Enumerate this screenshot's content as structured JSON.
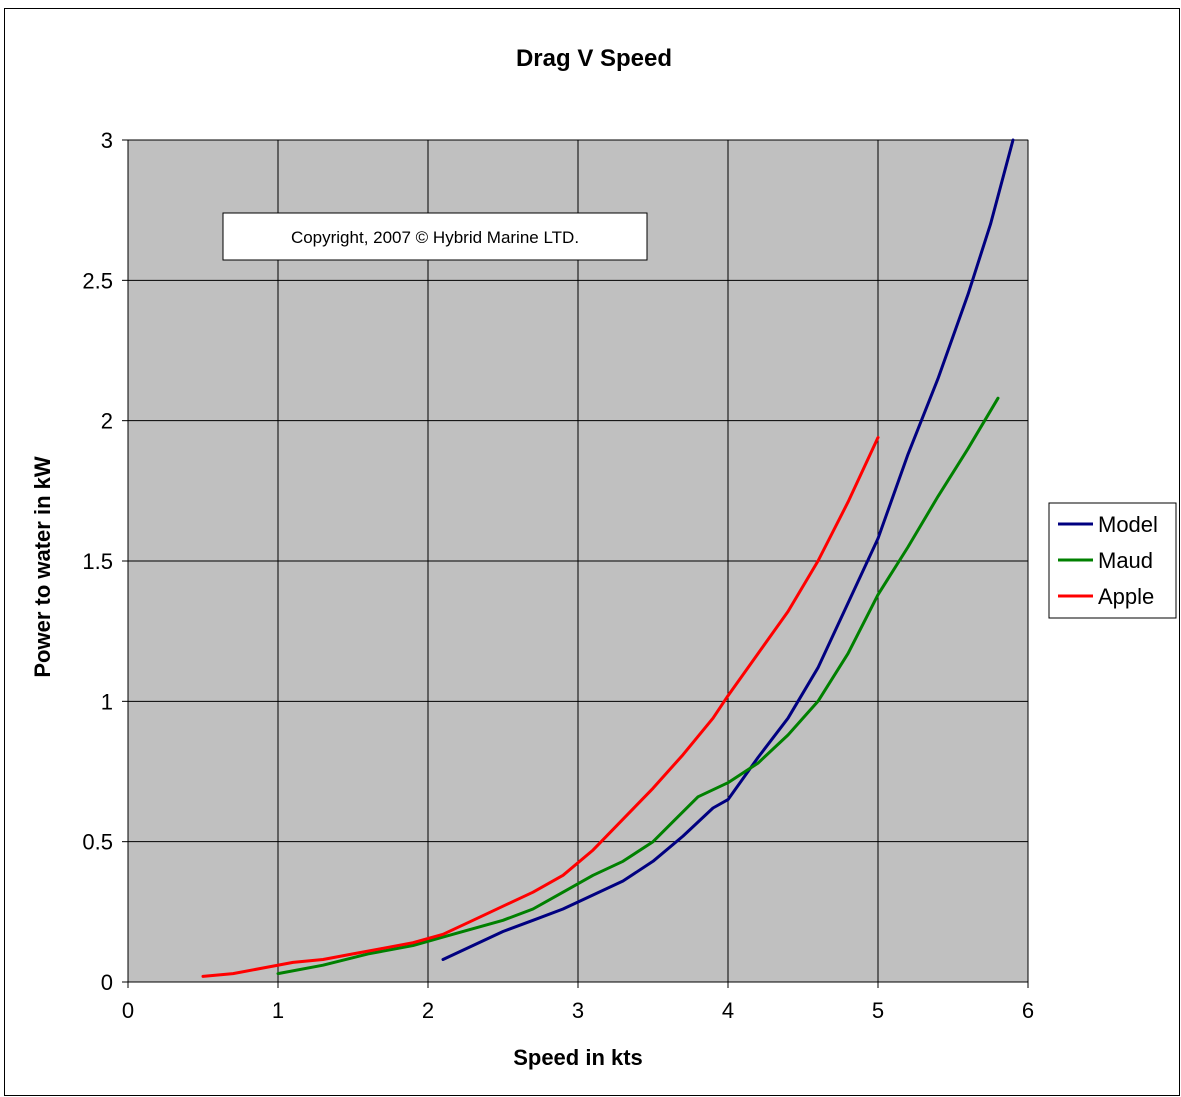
{
  "chart_data": {
    "type": "line",
    "title": "Drag V Speed",
    "xlabel": "Speed in kts",
    "ylabel": "Power to water in kW",
    "xlim": [
      0,
      6
    ],
    "ylim": [
      0,
      3
    ],
    "xticks": [
      0,
      1,
      2,
      3,
      4,
      5,
      6
    ],
    "yticks": [
      0,
      0.5,
      1,
      1.5,
      2,
      2.5,
      3
    ],
    "ytick_labels": [
      "0",
      "0.5",
      "1",
      "1.5",
      "2",
      "2.5",
      "3"
    ],
    "grid": true,
    "plot_background": "#c0c0c0",
    "legend_placement": "right",
    "annotation": "Copyright, 2007 © Hybrid Marine LTD.",
    "series": [
      {
        "name": "Model",
        "color": "#000080",
        "x": [
          2.1,
          2.3,
          2.5,
          2.7,
          2.9,
          3.1,
          3.3,
          3.5,
          3.7,
          3.9,
          4.0,
          4.2,
          4.4,
          4.6,
          4.8,
          5.0,
          5.2,
          5.4,
          5.6,
          5.75,
          5.9
        ],
        "y": [
          0.08,
          0.13,
          0.18,
          0.22,
          0.26,
          0.31,
          0.36,
          0.43,
          0.52,
          0.62,
          0.65,
          0.8,
          0.94,
          1.12,
          1.35,
          1.58,
          1.88,
          2.15,
          2.45,
          2.7,
          3.0
        ]
      },
      {
        "name": "Maud",
        "color": "#008000",
        "x": [
          1.0,
          1.3,
          1.6,
          1.9,
          2.1,
          2.3,
          2.5,
          2.7,
          2.9,
          3.1,
          3.3,
          3.5,
          3.65,
          3.8,
          4.0,
          4.2,
          4.4,
          4.6,
          4.8,
          5.0,
          5.2,
          5.4,
          5.6,
          5.8
        ],
        "y": [
          0.03,
          0.06,
          0.1,
          0.13,
          0.16,
          0.19,
          0.22,
          0.26,
          0.32,
          0.38,
          0.43,
          0.5,
          0.58,
          0.66,
          0.71,
          0.78,
          0.88,
          1.0,
          1.17,
          1.38,
          1.55,
          1.73,
          1.9,
          2.08
        ]
      },
      {
        "name": "Apple",
        "color": "#ff0000",
        "x": [
          0.5,
          0.7,
          0.9,
          1.1,
          1.3,
          1.5,
          1.7,
          1.9,
          2.1,
          2.3,
          2.5,
          2.7,
          2.9,
          3.1,
          3.3,
          3.5,
          3.7,
          3.9,
          4.0,
          4.2,
          4.4,
          4.6,
          4.8,
          5.0
        ],
        "y": [
          0.02,
          0.03,
          0.05,
          0.07,
          0.08,
          0.1,
          0.12,
          0.14,
          0.17,
          0.22,
          0.27,
          0.32,
          0.38,
          0.47,
          0.58,
          0.69,
          0.81,
          0.94,
          1.02,
          1.17,
          1.32,
          1.5,
          1.71,
          1.94
        ]
      }
    ]
  }
}
